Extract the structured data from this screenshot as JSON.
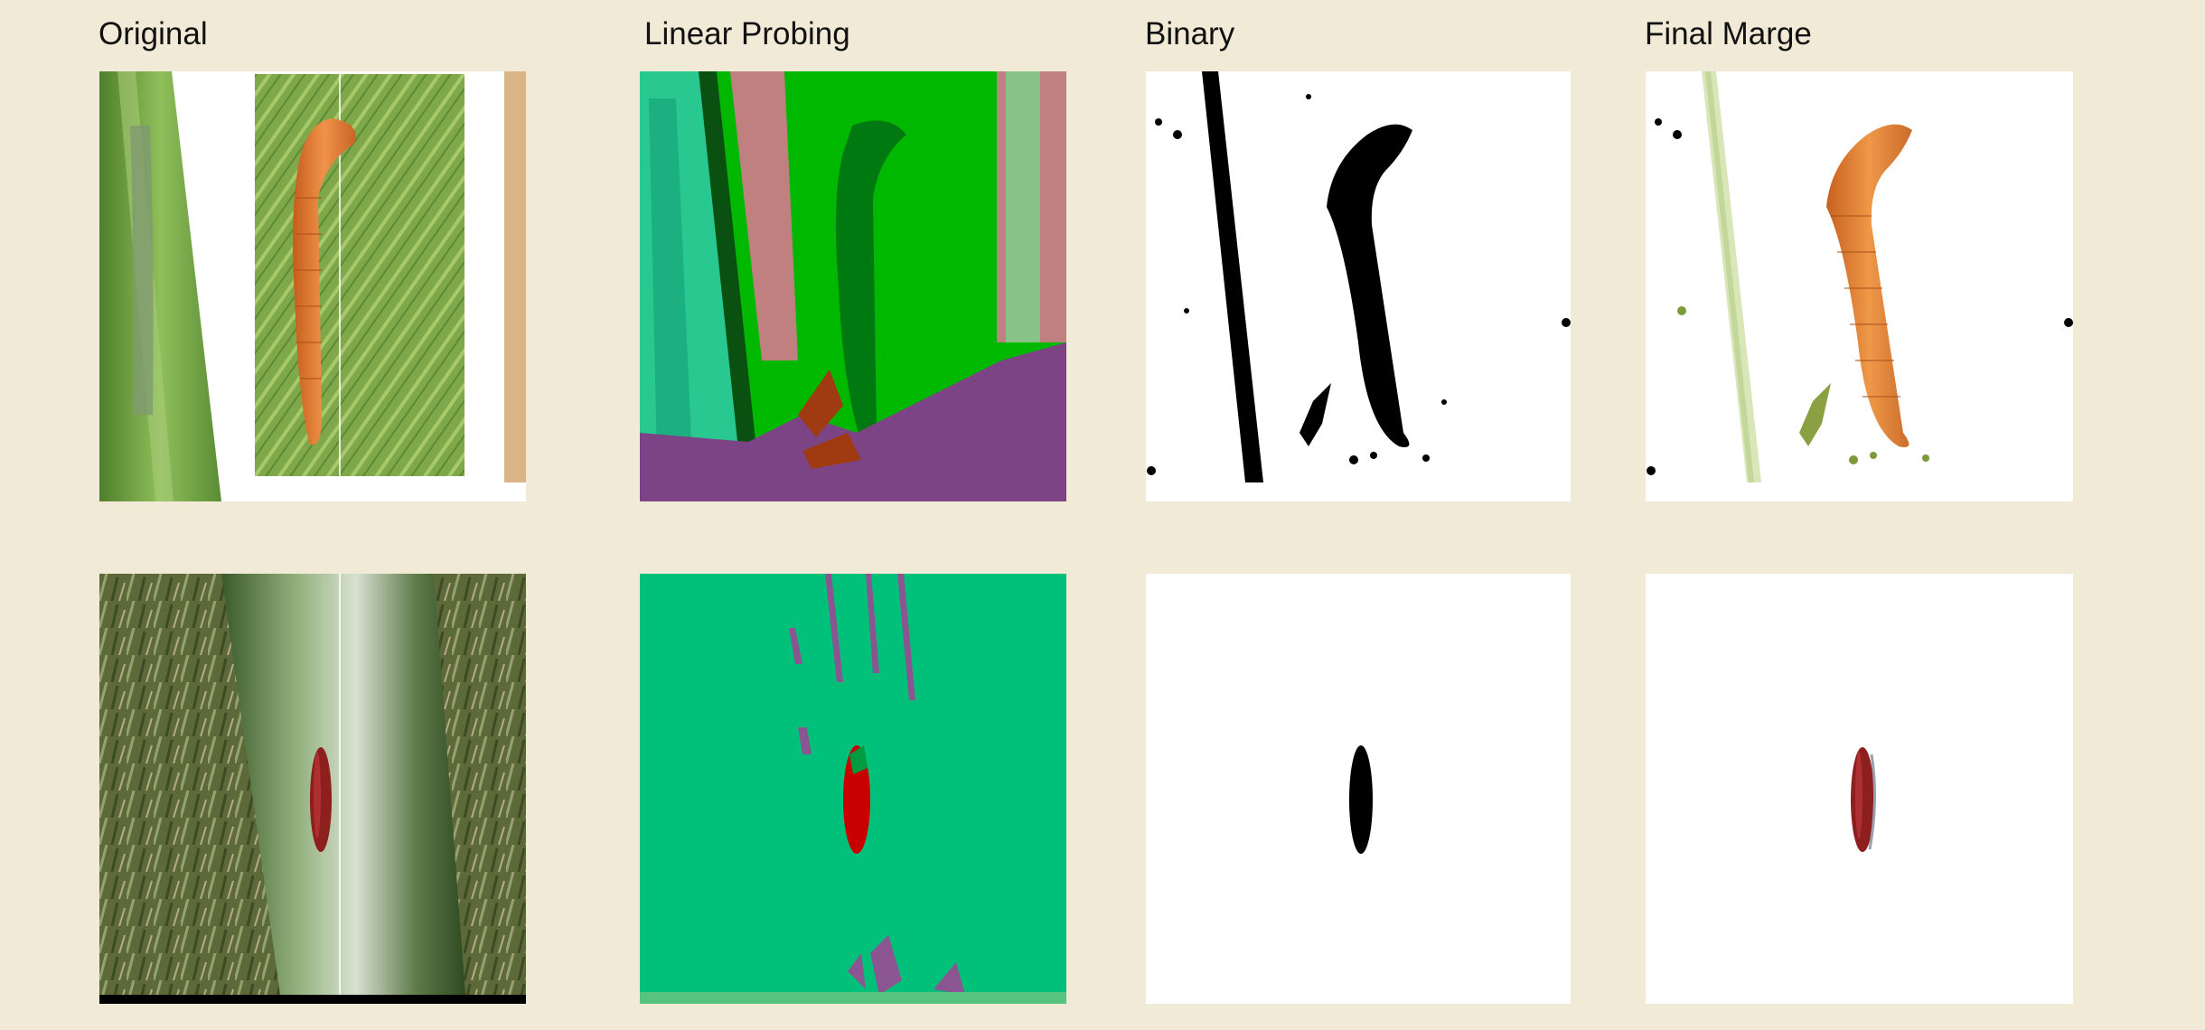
{
  "columns": [
    {
      "title": "Original"
    },
    {
      "title": "Linear Probing"
    },
    {
      "title": "Binary"
    },
    {
      "title": "Final Marge"
    }
  ],
  "rows": [
    {
      "segmentation_colors": {
        "leaf_bright": "#00b800",
        "larva_body": "#007a10",
        "stem_teal": "#28c890",
        "background_pink": "#c08080",
        "sage": "#88c288",
        "dark_strip": "#0a5010",
        "ground_purple": "#7c4484",
        "brown_patch": "#a03a10"
      }
    },
    {
      "segmentation_colors": {
        "background_green": "#00c07a",
        "insect_red": "#c80000",
        "streak_purple": "#8a5590",
        "bottom_band": "#56c47e"
      }
    }
  ]
}
